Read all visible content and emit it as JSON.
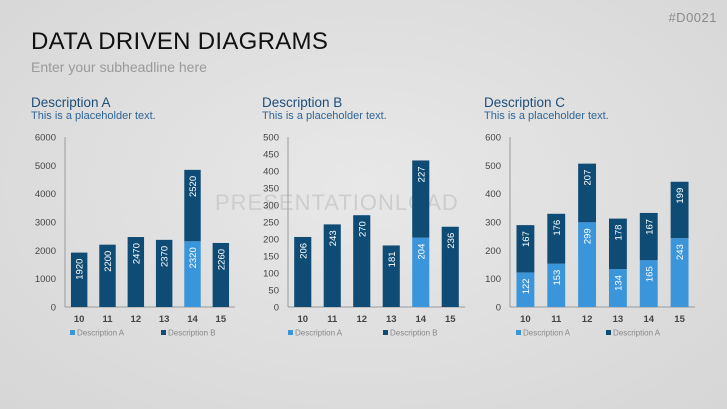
{
  "header": {
    "code": "#D0021",
    "title": "DATA DRIVEN DIAGRAMS",
    "subtitle": "Enter your subheadline here"
  },
  "watermark": "PRESENTATIONLOAD",
  "colors": {
    "dark": "#0f4c75",
    "light": "#3a95db",
    "axis": "#444444",
    "title": "#1f4e79"
  },
  "chart_data": [
    {
      "type": "bar",
      "stacked": true,
      "title": "Description A",
      "subtitle": "This is a placeholder text.",
      "categories": [
        "10",
        "11",
        "12",
        "13",
        "14",
        "15"
      ],
      "ylim": [
        0,
        6000
      ],
      "yticks": [
        0,
        1000,
        2000,
        3000,
        4000,
        5000,
        6000
      ],
      "series": [
        {
          "name": "Description A",
          "color": "#3a95db",
          "values": [
            0,
            0,
            0,
            0,
            2320,
            0
          ]
        },
        {
          "name": "Description B",
          "color": "#0f4c75",
          "values": [
            1920,
            2200,
            2470,
            2370,
            2520,
            2260
          ]
        }
      ],
      "data_labels": [
        [
          "1920"
        ],
        [
          "2200"
        ],
        [
          "2470"
        ],
        [
          "2370"
        ],
        [
          "2320",
          "2520"
        ],
        [
          "2260"
        ]
      ],
      "legend": [
        "Description A",
        "Description B"
      ]
    },
    {
      "type": "bar",
      "stacked": true,
      "title": "Description B",
      "subtitle": "This is a placeholder text.",
      "categories": [
        "10",
        "11",
        "12",
        "13",
        "14",
        "15"
      ],
      "ylim": [
        0,
        500
      ],
      "yticks": [
        0,
        50,
        100,
        150,
        200,
        250,
        300,
        350,
        400,
        450,
        500
      ],
      "series": [
        {
          "name": "Description A",
          "color": "#3a95db",
          "values": [
            0,
            0,
            0,
            0,
            204,
            0
          ]
        },
        {
          "name": "Description B",
          "color": "#0f4c75",
          "values": [
            206,
            243,
            270,
            181,
            227,
            236
          ]
        }
      ],
      "data_labels": [
        [
          "206"
        ],
        [
          "243"
        ],
        [
          "270"
        ],
        [
          "181"
        ],
        [
          "204",
          "227"
        ],
        [
          "236"
        ]
      ],
      "legend": [
        "Description A",
        "Description B"
      ]
    },
    {
      "type": "bar",
      "stacked": true,
      "title": "Description C",
      "subtitle": "This is a placeholder text.",
      "categories": [
        "10",
        "11",
        "12",
        "13",
        "14",
        "15"
      ],
      "ylim": [
        0,
        600
      ],
      "yticks": [
        0,
        100,
        200,
        300,
        400,
        500,
        600
      ],
      "series": [
        {
          "name": "Description A",
          "color": "#3a95db",
          "values": [
            122,
            153,
            299,
            134,
            165,
            243
          ]
        },
        {
          "name": "Description A",
          "color": "#0f4c75",
          "values": [
            167,
            176,
            207,
            178,
            167,
            199
          ]
        }
      ],
      "data_labels": [
        [
          "122",
          "167"
        ],
        [
          "153",
          "176"
        ],
        [
          "299",
          "207"
        ],
        [
          "134",
          "178"
        ],
        [
          "165",
          "167"
        ],
        [
          "243",
          "199"
        ]
      ],
      "legend": [
        "Description A",
        "Description A"
      ]
    }
  ]
}
